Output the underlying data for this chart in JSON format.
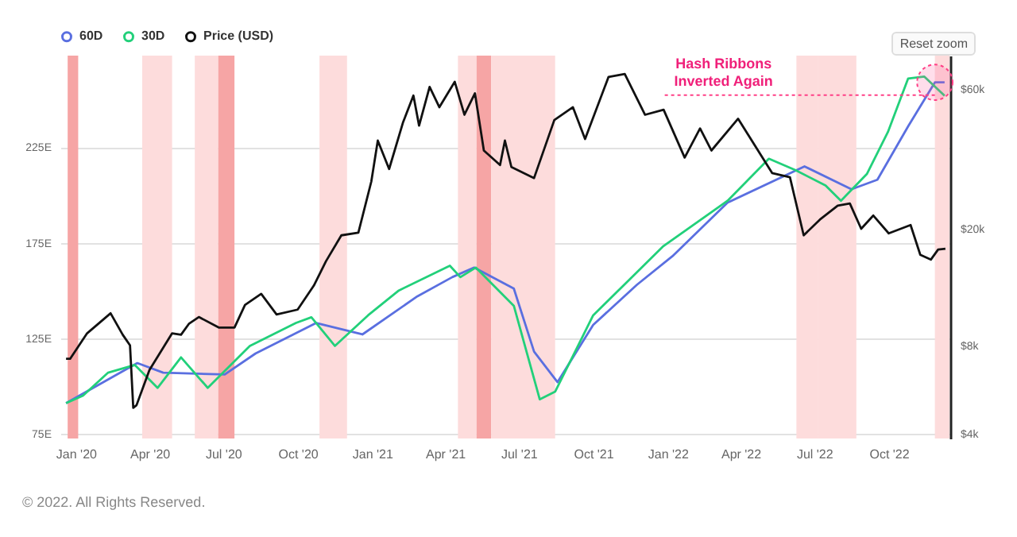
{
  "chart_data": {
    "type": "line",
    "x": [
      "2019-12-20",
      "2020-01-10",
      "2020-02-10",
      "2020-03-14",
      "2020-04-11",
      "2020-05-10",
      "2020-06-12",
      "2020-08-03",
      "2020-09-29",
      "2020-10-18",
      "2020-11-16",
      "2020-12-27",
      "2021-02-03",
      "2021-04-07",
      "2021-04-20",
      "2021-05-09",
      "2021-06-25",
      "2021-07-27",
      "2021-08-15",
      "2021-10-01",
      "2021-11-18",
      "2021-12-26",
      "2022-03-16",
      "2022-05-06",
      "2022-06-08",
      "2022-07-15",
      "2022-08-03",
      "2022-09-04",
      "2022-09-30",
      "2022-10-25",
      "2022-11-14",
      "2022-12-09"
    ],
    "series": [
      {
        "name": "60D",
        "color": "#5a6fe0",
        "x": [
          "2019-12-20",
          "2020-03-17",
          "2020-04-18",
          "2020-07-03",
          "2020-08-10",
          "2020-10-24",
          "2020-12-20",
          "2021-02-26",
          "2021-04-10",
          "2021-05-07",
          "2021-06-25",
          "2021-07-20",
          "2021-08-18",
          "2021-10-01",
          "2021-11-24",
          "2022-01-07",
          "2022-03-16",
          "2022-06-19",
          "2022-08-16",
          "2022-09-17",
          "2022-10-25",
          "2022-11-27",
          "2022-12-09"
        ],
        "values": [
          91,
          112,
          107,
          106,
          117,
          133,
          127,
          147,
          157,
          162,
          151,
          118,
          102,
          132,
          153,
          168,
          196,
          215,
          203,
          208,
          236,
          259,
          259
        ]
      },
      {
        "name": "30D",
        "color": "#22d07a",
        "values": [
          91,
          95,
          107,
          111,
          99,
          115,
          99,
          121,
          133,
          136,
          121,
          137,
          150,
          163,
          157,
          162,
          142,
          93,
          97,
          137,
          157,
          173,
          197,
          219,
          213,
          205,
          197,
          211,
          233,
          261,
          262,
          252
        ]
      },
      {
        "name": "Price (USD)",
        "color": "#111111",
        "axis": "y2",
        "x": [
          "2019-12-20",
          "2019-12-25",
          "2020-01-15",
          "2020-02-13",
          "2020-02-28",
          "2020-03-08",
          "2020-03-12",
          "2020-03-16",
          "2020-04-01",
          "2020-04-29",
          "2020-05-10",
          "2020-05-20",
          "2020-06-01",
          "2020-06-26",
          "2020-07-15",
          "2020-07-28",
          "2020-08-17",
          "2020-09-05",
          "2020-10-01",
          "2020-10-21",
          "2020-11-05",
          "2020-11-24",
          "2020-12-15",
          "2020-12-31",
          "2021-01-08",
          "2021-01-22",
          "2021-02-08",
          "2021-02-21",
          "2021-02-28",
          "2021-03-13",
          "2021-03-25",
          "2021-04-13",
          "2021-04-25",
          "2021-05-08",
          "2021-05-19",
          "2021-06-08",
          "2021-06-14",
          "2021-06-22",
          "2021-07-20",
          "2021-08-14",
          "2021-09-06",
          "2021-09-21",
          "2021-10-20",
          "2021-11-09",
          "2021-12-04",
          "2021-12-27",
          "2022-01-22",
          "2022-02-10",
          "2022-02-24",
          "2022-03-29",
          "2022-05-10",
          "2022-06-01",
          "2022-06-18",
          "2022-07-08",
          "2022-07-30",
          "2022-08-14",
          "2022-08-28",
          "2022-09-12",
          "2022-10-01",
          "2022-10-28",
          "2022-11-09",
          "2022-11-22",
          "2022-12-01",
          "2022-12-10"
        ],
        "values": [
          7200,
          7200,
          8800,
          10300,
          8700,
          8000,
          4900,
          5000,
          6600,
          8800,
          8700,
          9500,
          10000,
          9200,
          9200,
          11000,
          12000,
          10200,
          10600,
          12800,
          15500,
          19000,
          19400,
          29000,
          40000,
          32000,
          46000,
          57000,
          45000,
          61000,
          52000,
          63500,
          49000,
          58000,
          37000,
          33000,
          40000,
          32500,
          29800,
          47000,
          52000,
          40500,
          66000,
          67500,
          49000,
          51000,
          35000,
          44000,
          37000,
          47500,
          31000,
          30000,
          19000,
          21500,
          24000,
          24400,
          20000,
          22200,
          19300,
          20600,
          16300,
          15700,
          17000,
          17100
        ]
      }
    ],
    "xlim": [
      "2019-12-13",
      "2022-12-16"
    ],
    "xticks": [
      {
        "value": "2020-01-01",
        "label": "Jan '20"
      },
      {
        "value": "2020-04-01",
        "label": "Apr '20"
      },
      {
        "value": "2020-07-01",
        "label": "Jul '20"
      },
      {
        "value": "2020-10-01",
        "label": "Oct '20"
      },
      {
        "value": "2021-01-01",
        "label": "Jan '21"
      },
      {
        "value": "2021-04-01",
        "label": "Apr '21"
      },
      {
        "value": "2021-07-01",
        "label": "Jul '21"
      },
      {
        "value": "2021-10-01",
        "label": "Oct '21"
      },
      {
        "value": "2022-01-01",
        "label": "Jan '22"
      },
      {
        "value": "2022-04-01",
        "label": "Apr '22"
      },
      {
        "value": "2022-07-01",
        "label": "Jul '22"
      },
      {
        "value": "2022-10-01",
        "label": "Oct '22"
      }
    ],
    "ylim": [
      72.5,
      273
    ],
    "yticks": [
      {
        "value": 75,
        "label": "75E"
      },
      {
        "value": 125,
        "label": "125E"
      },
      {
        "value": 175,
        "label": "175E"
      },
      {
        "value": 225,
        "label": "225E"
      }
    ],
    "y2lim": [
      3850,
      78000
    ],
    "y2ticks": [
      {
        "value": 4000,
        "label": "$4k"
      },
      {
        "value": 8000,
        "label": "$8k"
      },
      {
        "value": 20000,
        "label": "$20k"
      },
      {
        "value": 60000,
        "label": "$60k"
      }
    ],
    "log": "y2",
    "grid": "y",
    "legend": "top left",
    "bands": [
      {
        "axis": "x",
        "from": "2019-12-22",
        "to": "2020-01-04",
        "color": "#f6a5a5"
      },
      {
        "axis": "x",
        "from": "2020-03-23",
        "to": "2020-04-29",
        "color": "#fddcdc"
      },
      {
        "axis": "x",
        "from": "2020-05-27",
        "to": "2020-06-25",
        "color": "#fddcdc"
      },
      {
        "axis": "x",
        "from": "2020-06-25",
        "to": "2020-07-15",
        "color": "#f6a5a5"
      },
      {
        "axis": "x",
        "from": "2020-10-28",
        "to": "2020-12-01",
        "color": "#fddcdc"
      },
      {
        "axis": "x",
        "from": "2021-04-17",
        "to": "2021-05-10",
        "color": "#fddcdc"
      },
      {
        "axis": "x",
        "from": "2021-05-10",
        "to": "2021-05-28",
        "color": "#f6a5a5"
      },
      {
        "axis": "x",
        "from": "2021-05-28",
        "to": "2021-08-15",
        "color": "#fddcdc"
      },
      {
        "axis": "x",
        "from": "2022-06-09",
        "to": "2022-07-06",
        "color": "#fddcdc"
      },
      {
        "axis": "x",
        "from": "2022-07-06",
        "to": "2022-08-22",
        "color": "#fddcdc"
      },
      {
        "axis": "x",
        "from": "2022-11-27",
        "to": "2022-12-15",
        "color": "#fddcdc"
      }
    ],
    "annotations": [
      {
        "text": "Hash Ribbons\nInverted Again",
        "x": "2022-11-27",
        "y": 259
      },
      "Reset zoom",
      "© 2022. All Rights Reserved."
    ]
  }
}
